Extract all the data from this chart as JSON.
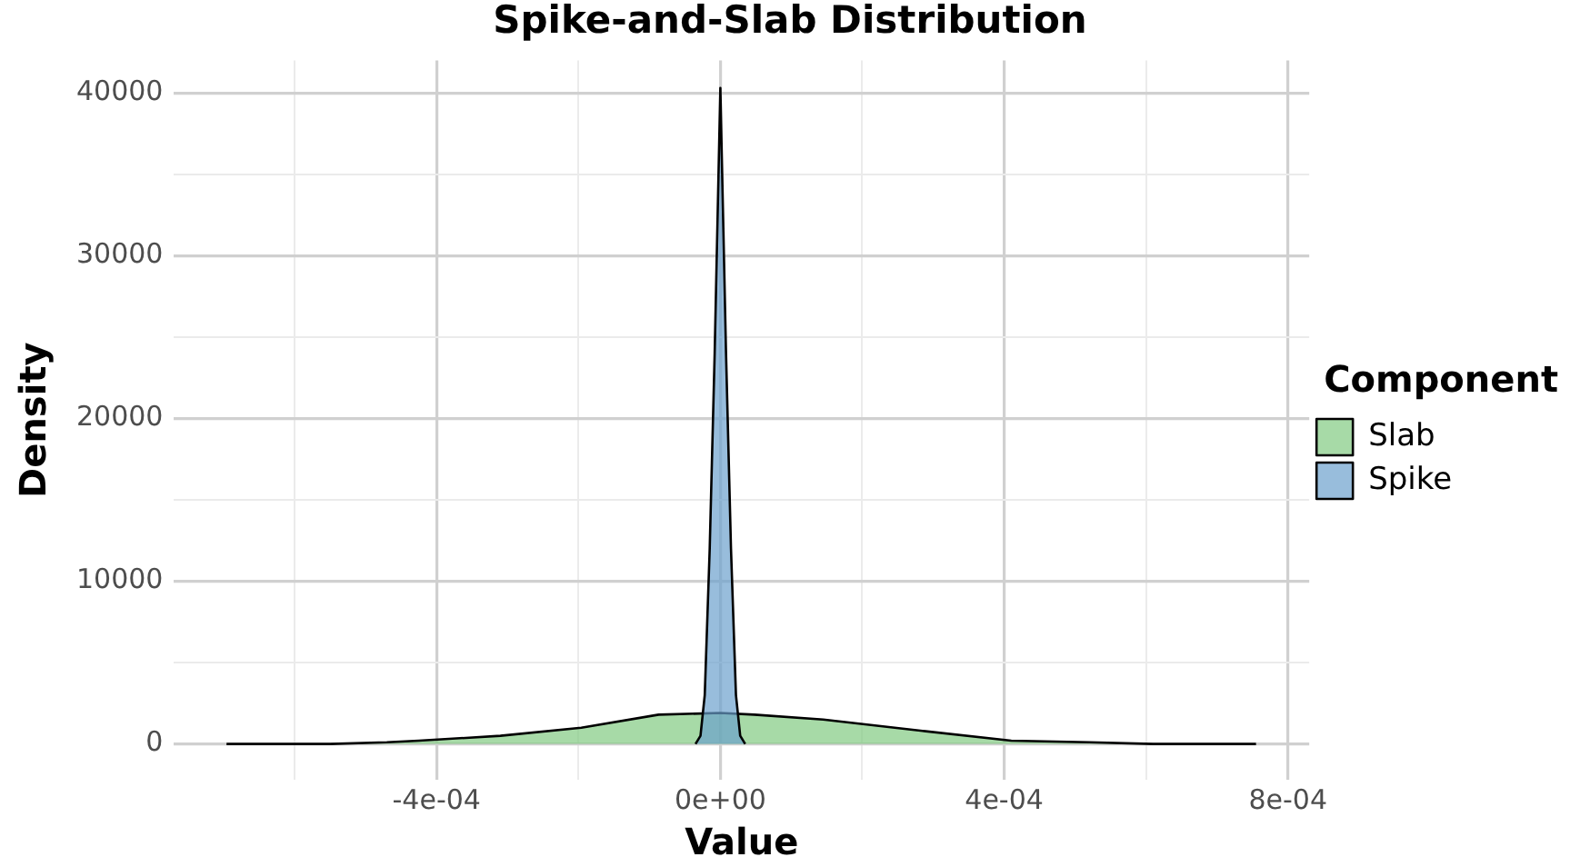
{
  "chart_data": {
    "type": "area",
    "title": "Spike-and-Slab Distribution",
    "xlabel": "Value",
    "ylabel": "Density",
    "legend_title": "Component",
    "series": [
      {
        "name": "Slab",
        "color": "#7fc97f",
        "x": [
          -0.000696,
          -0.00055,
          -0.00047,
          -0.000425,
          -0.00031,
          -0.000196,
          -8.7e-05,
          0,
          4.8e-05,
          0.000145,
          0.000285,
          0.00041,
          0.00052,
          0.00061,
          0.000755
        ],
        "values": [
          0,
          0,
          100,
          200,
          500,
          1000,
          1800,
          1900,
          1800,
          1500,
          800,
          200,
          100,
          0,
          0
        ]
      },
      {
        "name": "Spike",
        "color": "#6a9fcd",
        "x": [
          -3.5e-05,
          -2.8e-05,
          -2.2e-05,
          -1.5e-05,
          -8e-06,
          0,
          8e-06,
          1.5e-05,
          2.2e-05,
          2.8e-05,
          3.5e-05
        ],
        "values": [
          0,
          500,
          3000,
          12000,
          24000,
          40300,
          24000,
          12000,
          3000,
          500,
          0
        ]
      }
    ],
    "xlim": [
      -0.00077,
      0.00083
    ],
    "ylim": [
      -2200,
      42000
    ],
    "xticks": [
      {
        "value": -0.0006,
        "label": null
      },
      {
        "value": -0.0004,
        "label": "-4e-04"
      },
      {
        "value": -0.0002,
        "label": null
      },
      {
        "value": 0,
        "label": "0e+00"
      },
      {
        "value": 0.0002,
        "label": null
      },
      {
        "value": 0.0004,
        "label": "4e-04"
      },
      {
        "value": 0.0006,
        "label": null
      },
      {
        "value": 0.0008,
        "label": "8e-04"
      }
    ],
    "yticks": [
      0,
      {
        "value": 5000,
        "label": null
      },
      10000,
      {
        "value": 15000,
        "label": null
      },
      20000,
      {
        "value": 25000,
        "label": null
      },
      30000,
      {
        "value": 35000,
        "label": null
      },
      40000
    ],
    "grid": true,
    "legend": "right"
  }
}
